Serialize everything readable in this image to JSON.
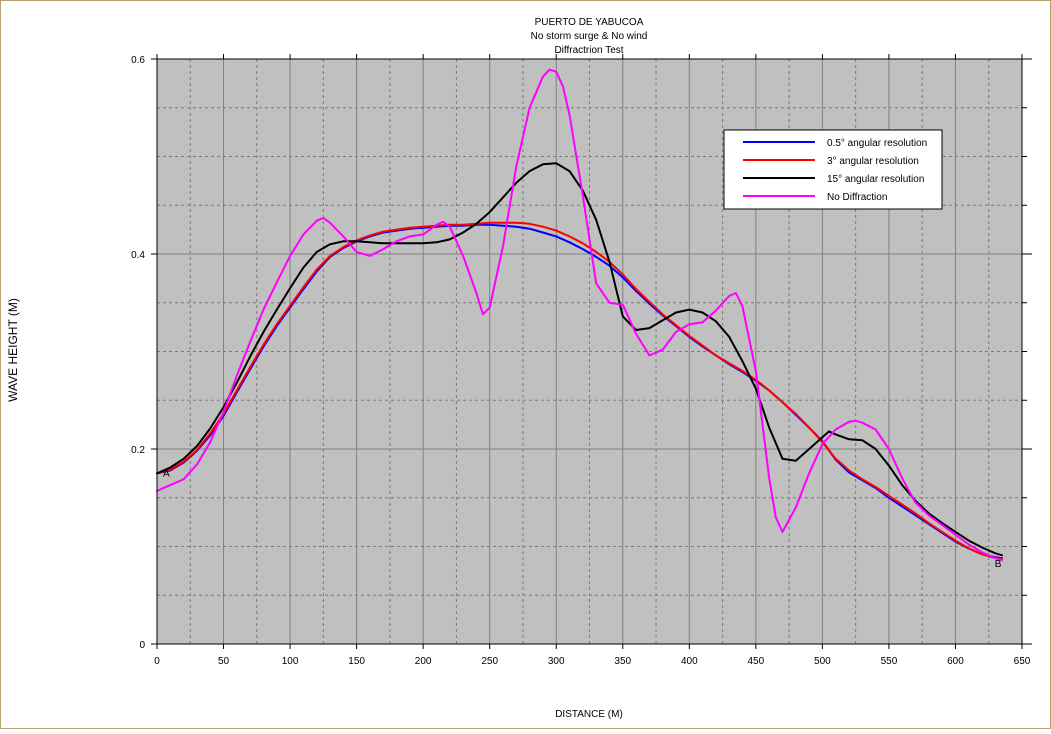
{
  "chart_data": {
    "type": "line",
    "title": "PUERTO DE YABUCOA",
    "subtitle_lines": [
      "No storm surge & No wind",
      "Diffractrion Test"
    ],
    "xlabel": "DISTANCE (M)",
    "ylabel": "WAVE HEIGHT (M)",
    "xlim": [
      0,
      650
    ],
    "ylim": [
      0,
      0.6
    ],
    "x_ticks": [
      0,
      50,
      100,
      150,
      200,
      250,
      300,
      350,
      400,
      450,
      500,
      550,
      600,
      650
    ],
    "x_tick_labels": [
      "0",
      "50",
      "100",
      "150",
      "200",
      "250",
      "300",
      "350",
      "400",
      "450",
      "500",
      "550",
      "600",
      "650"
    ],
    "y_ticks": [
      0,
      0.2,
      0.4,
      0.6
    ],
    "y_tick_labels": [
      "0",
      "0.2",
      "0.4",
      "0.6"
    ],
    "grid": true,
    "legend_position": "top-right",
    "annotations": [
      {
        "text": "A",
        "x": 7,
        "y": 0.172
      },
      {
        "text": "B",
        "x": 632,
        "y": 0.079
      }
    ],
    "colors": {
      "plot_background": "#c0c0c0",
      "grid_major": "#808080",
      "grid_minor": "#7a7a7a",
      "page_border": "#b8a070"
    },
    "series": [
      {
        "name": "0.5° angular resolution",
        "color": "#0000ff",
        "x": [
          0,
          10,
          20,
          30,
          40,
          50,
          60,
          70,
          80,
          90,
          100,
          110,
          120,
          130,
          140,
          150,
          160,
          170,
          180,
          190,
          200,
          210,
          220,
          230,
          240,
          250,
          260,
          270,
          280,
          290,
          300,
          310,
          320,
          330,
          340,
          350,
          360,
          370,
          380,
          390,
          400,
          410,
          420,
          430,
          440,
          450,
          460,
          470,
          480,
          490,
          500,
          510,
          520,
          530,
          540,
          550,
          560,
          570,
          580,
          590,
          600,
          610,
          620,
          630,
          635
        ],
        "y": [
          0.175,
          0.178,
          0.186,
          0.198,
          0.214,
          0.234,
          0.258,
          0.282,
          0.305,
          0.326,
          0.345,
          0.364,
          0.382,
          0.397,
          0.406,
          0.413,
          0.418,
          0.422,
          0.424,
          0.426,
          0.427,
          0.428,
          0.429,
          0.429,
          0.43,
          0.43,
          0.429,
          0.428,
          0.426,
          0.422,
          0.418,
          0.412,
          0.405,
          0.397,
          0.388,
          0.376,
          0.362,
          0.349,
          0.337,
          0.326,
          0.315,
          0.305,
          0.296,
          0.287,
          0.279,
          0.27,
          0.26,
          0.248,
          0.235,
          0.222,
          0.208,
          0.189,
          0.176,
          0.168,
          0.16,
          0.15,
          0.141,
          0.132,
          0.123,
          0.114,
          0.105,
          0.098,
          0.092,
          0.089,
          0.088
        ]
      },
      {
        "name": "3° angular resolution",
        "color": "#ff0000",
        "x": [
          0,
          10,
          20,
          30,
          40,
          50,
          60,
          70,
          80,
          90,
          100,
          110,
          120,
          130,
          140,
          150,
          160,
          170,
          180,
          190,
          200,
          210,
          220,
          230,
          240,
          250,
          260,
          270,
          280,
          290,
          300,
          310,
          320,
          330,
          340,
          350,
          360,
          370,
          380,
          390,
          400,
          410,
          420,
          430,
          440,
          450,
          460,
          470,
          480,
          490,
          500,
          510,
          520,
          530,
          540,
          550,
          560,
          570,
          580,
          590,
          600,
          610,
          620,
          630,
          635
        ],
        "y": [
          0.175,
          0.179,
          0.187,
          0.199,
          0.216,
          0.236,
          0.26,
          0.284,
          0.307,
          0.328,
          0.347,
          0.366,
          0.384,
          0.398,
          0.407,
          0.414,
          0.419,
          0.423,
          0.425,
          0.427,
          0.428,
          0.429,
          0.43,
          0.43,
          0.431,
          0.432,
          0.432,
          0.432,
          0.431,
          0.428,
          0.424,
          0.418,
          0.411,
          0.402,
          0.392,
          0.379,
          0.364,
          0.351,
          0.338,
          0.327,
          0.316,
          0.306,
          0.296,
          0.288,
          0.28,
          0.271,
          0.26,
          0.248,
          0.236,
          0.222,
          0.207,
          0.19,
          0.178,
          0.169,
          0.161,
          0.152,
          0.143,
          0.134,
          0.124,
          0.115,
          0.106,
          0.098,
          0.092,
          0.088,
          0.087
        ]
      },
      {
        "name": "15° angular resolution",
        "color": "#000000",
        "x": [
          0,
          10,
          20,
          30,
          40,
          50,
          60,
          70,
          80,
          90,
          100,
          110,
          120,
          130,
          140,
          150,
          160,
          170,
          180,
          190,
          200,
          210,
          220,
          230,
          240,
          250,
          260,
          270,
          280,
          290,
          300,
          310,
          320,
          330,
          340,
          350,
          360,
          370,
          380,
          390,
          400,
          410,
          420,
          430,
          440,
          450,
          460,
          470,
          480,
          490,
          500,
          505,
          510,
          520,
          530,
          540,
          550,
          560,
          570,
          580,
          590,
          600,
          610,
          620,
          630,
          635
        ],
        "y": [
          0.175,
          0.181,
          0.19,
          0.203,
          0.221,
          0.243,
          0.268,
          0.295,
          0.32,
          0.343,
          0.365,
          0.386,
          0.402,
          0.41,
          0.413,
          0.413,
          0.412,
          0.411,
          0.411,
          0.411,
          0.411,
          0.412,
          0.415,
          0.422,
          0.431,
          0.443,
          0.458,
          0.473,
          0.485,
          0.492,
          0.493,
          0.485,
          0.465,
          0.435,
          0.392,
          0.336,
          0.322,
          0.324,
          0.332,
          0.34,
          0.343,
          0.34,
          0.331,
          0.315,
          0.29,
          0.262,
          0.222,
          0.19,
          0.188,
          0.2,
          0.212,
          0.218,
          0.215,
          0.21,
          0.209,
          0.2,
          0.183,
          0.163,
          0.147,
          0.134,
          0.124,
          0.115,
          0.106,
          0.099,
          0.093,
          0.091
        ]
      },
      {
        "name": "No Diffraction",
        "color": "#ff00ff",
        "x": [
          0,
          10,
          20,
          30,
          40,
          50,
          60,
          70,
          80,
          90,
          100,
          110,
          120,
          125,
          130,
          140,
          150,
          160,
          170,
          180,
          190,
          200,
          210,
          215,
          220,
          230,
          240,
          245,
          250,
          260,
          270,
          280,
          290,
          295,
          300,
          305,
          310,
          320,
          330,
          340,
          350,
          360,
          370,
          380,
          390,
          400,
          410,
          420,
          430,
          435,
          440,
          450,
          460,
          465,
          470,
          480,
          490,
          500,
          510,
          520,
          525,
          530,
          540,
          550,
          560,
          570,
          580,
          590,
          600,
          610,
          620,
          630,
          635
        ],
        "y": [
          0.157,
          0.163,
          0.169,
          0.184,
          0.207,
          0.238,
          0.275,
          0.31,
          0.343,
          0.371,
          0.398,
          0.42,
          0.434,
          0.437,
          0.432,
          0.418,
          0.402,
          0.398,
          0.405,
          0.413,
          0.418,
          0.42,
          0.43,
          0.433,
          0.428,
          0.398,
          0.36,
          0.338,
          0.345,
          0.408,
          0.49,
          0.55,
          0.582,
          0.589,
          0.587,
          0.572,
          0.543,
          0.46,
          0.37,
          0.35,
          0.348,
          0.318,
          0.296,
          0.302,
          0.32,
          0.328,
          0.33,
          0.342,
          0.357,
          0.36,
          0.346,
          0.28,
          0.17,
          0.13,
          0.115,
          0.14,
          0.175,
          0.205,
          0.22,
          0.228,
          0.229,
          0.227,
          0.22,
          0.2,
          0.17,
          0.145,
          0.132,
          0.122,
          0.112,
          0.102,
          0.094,
          0.088,
          0.086
        ]
      }
    ]
  }
}
